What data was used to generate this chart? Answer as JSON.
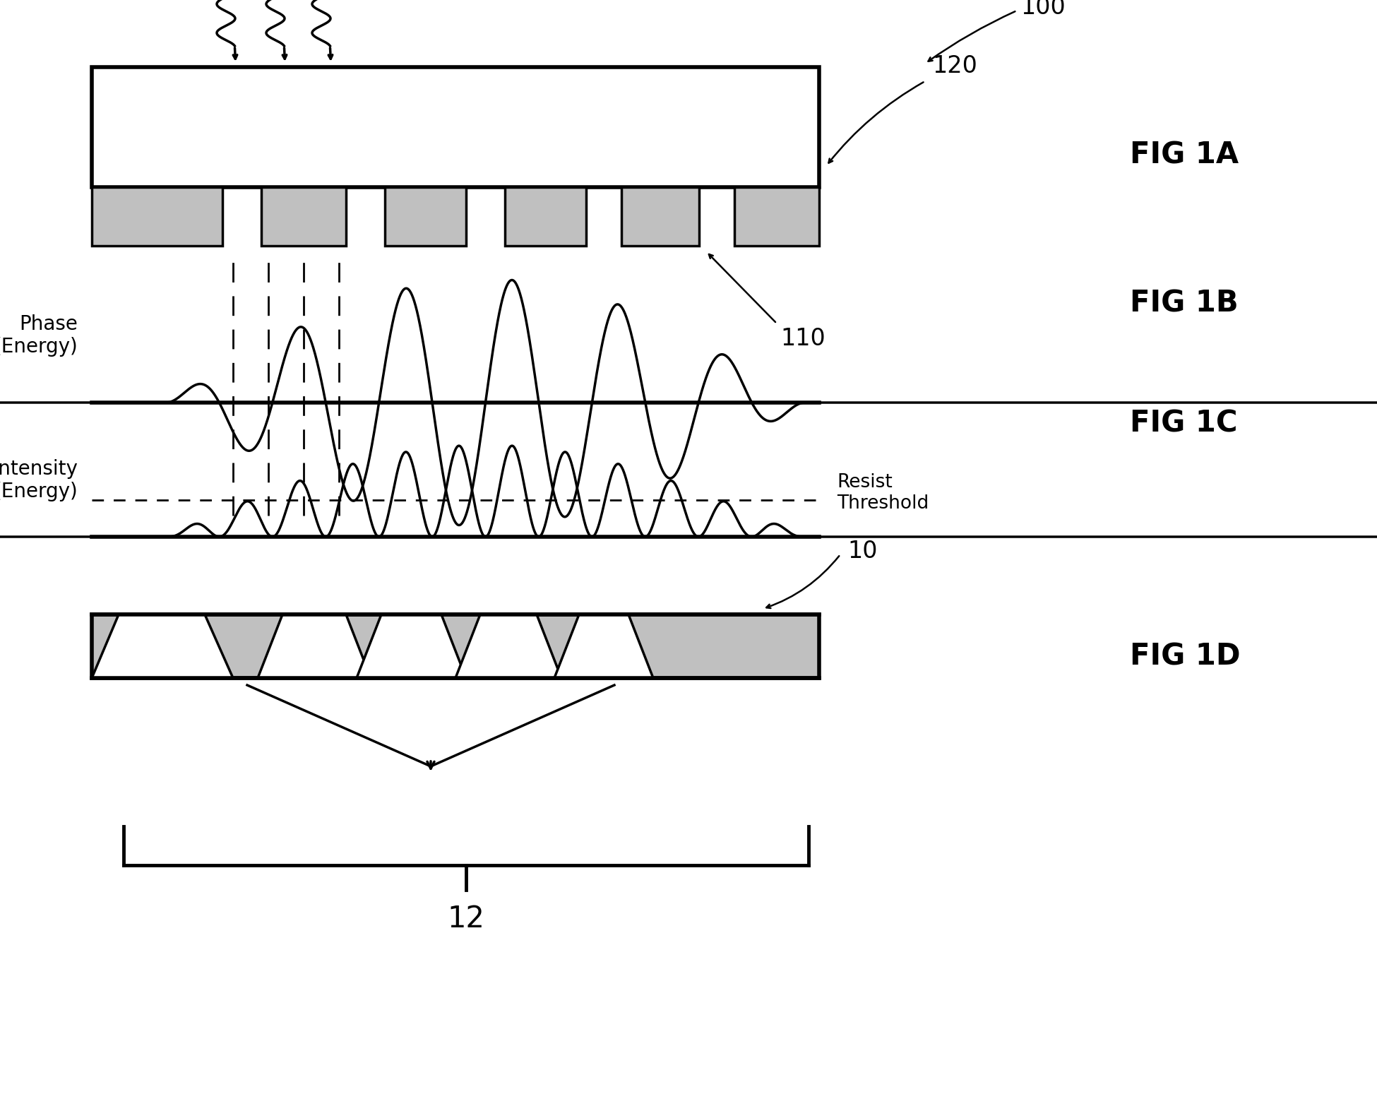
{
  "bg_color": "#ffffff",
  "fig_labels": [
    "FIG 1A",
    "FIG 1B",
    "FIG 1C",
    "FIG 1D"
  ],
  "fig_label_fontsize": 30,
  "annotation_fontsize": 24,
  "label_100": "100",
  "label_120": "120",
  "label_110": "110",
  "label_10": "10",
  "label_12": "12",
  "phase_label": "Phase\n(Energy)",
  "intensity_label": "Intensity\n(Energy)",
  "resist_label": "Resist\nThreshold",
  "gray_color": "#c0c0c0",
  "lw": 2.5,
  "lw_thick": 4.0
}
